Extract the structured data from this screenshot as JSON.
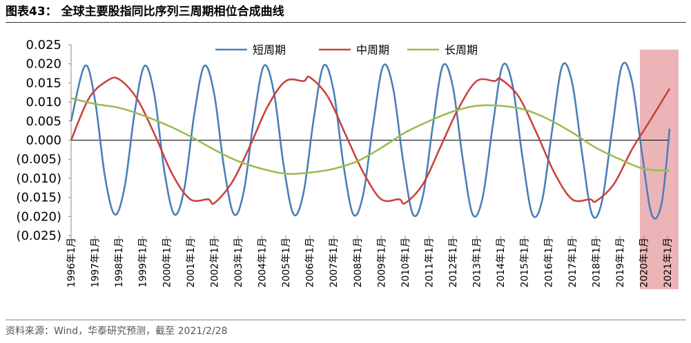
{
  "figure": {
    "title": "图表43：   全球主要股指同比序列三周期相位合成曲线",
    "source": "资料来源：Wind，华泰研究预测，截至 2021/2/28"
  },
  "chart_data": {
    "type": "line",
    "title": "",
    "xlabel": "",
    "ylabel": "",
    "ylim": [
      -0.025,
      0.025
    ],
    "yticks": [
      0.025,
      0.02,
      0.015,
      0.01,
      0.005,
      0.0,
      -0.005,
      -0.01,
      -0.015,
      -0.02,
      -0.025
    ],
    "ytick_labels": [
      "0.025",
      "0.020",
      "0.015",
      "0.010",
      "0.005",
      "0.000",
      "(0.005)",
      "(0.010)",
      "(0.015)",
      "(0.020)",
      "(0.025)"
    ],
    "xlim": [
      "1996-01",
      "2021-02"
    ],
    "xtick_labels": [
      "1996年1月",
      "1997年1月",
      "1998年1月",
      "1999年1月",
      "2000年1月",
      "2001年1月",
      "2002年1月",
      "2003年1月",
      "2004年1月",
      "2005年1月",
      "2006年1月",
      "2007年1月",
      "2008年1月",
      "2009年1月",
      "2010年1月",
      "2011年1月",
      "2012年1月",
      "2013年1月",
      "2014年1月",
      "2015年1月",
      "2016年1月",
      "2017年1月",
      "2018年1月",
      "2019年1月",
      "2020年1月",
      "2021年1月"
    ],
    "legend_position": "top-center",
    "grid": false,
    "highlight": {
      "from": "2020-12",
      "to": "2021-02",
      "color": "#e8a8ab"
    },
    "series": [
      {
        "name": "短周期",
        "color": "#4a7eb8",
        "x": [
          "1996-01",
          "1996-08",
          "1997-01",
          "1997-06",
          "1997-11",
          "1998-04",
          "1998-09",
          "1999-02",
          "1999-07",
          "1999-12",
          "2000-05",
          "2000-10",
          "2001-03",
          "2001-08",
          "2002-01",
          "2002-06",
          "2002-11",
          "2003-04",
          "2003-09",
          "2004-02",
          "2004-07",
          "2004-12",
          "2005-05",
          "2005-10",
          "2006-03",
          "2006-08",
          "2007-01",
          "2007-06",
          "2007-11",
          "2008-04",
          "2008-09",
          "2009-02",
          "2009-07",
          "2009-12",
          "2010-05",
          "2010-10",
          "2011-03",
          "2011-08",
          "2012-01",
          "2012-06",
          "2012-11",
          "2013-04",
          "2013-09",
          "2014-02",
          "2014-07",
          "2014-12",
          "2015-05",
          "2015-10",
          "2016-03",
          "2016-08",
          "2017-01",
          "2017-06",
          "2017-11",
          "2018-04",
          "2018-09",
          "2019-02",
          "2019-07",
          "2019-12",
          "2020-05",
          "2020-10",
          "2021-02"
        ],
        "values": [
          0.005,
          0.0195,
          0.0105,
          -0.0095,
          -0.0195,
          -0.012,
          0.0075,
          0.0195,
          0.0115,
          -0.0085,
          -0.0195,
          -0.0125,
          0.007,
          0.0195,
          0.012,
          -0.0075,
          -0.0195,
          -0.013,
          0.006,
          0.0195,
          0.0125,
          -0.007,
          -0.0195,
          -0.0135,
          0.0055,
          0.0195,
          0.013,
          -0.0065,
          -0.0195,
          -0.014,
          0.0045,
          0.0195,
          0.0135,
          -0.0055,
          -0.0195,
          -0.0145,
          0.004,
          0.0195,
          0.014,
          -0.005,
          -0.0195,
          -0.015,
          0.0035,
          0.0195,
          0.0145,
          -0.0045,
          -0.0195,
          -0.0155,
          0.003,
          0.0195,
          0.015,
          -0.0035,
          -0.0195,
          -0.016,
          0.0025,
          0.0195,
          0.0155,
          -0.003,
          -0.0195,
          -0.0165,
          0.003
        ]
      },
      {
        "name": "中周期",
        "color": "#c8423f",
        "x": [
          "1996-01",
          "1996-10",
          "1997-07",
          "1998-01",
          "1998-10",
          "1999-07",
          "2000-04",
          "2001-01",
          "2001-10",
          "2002-01",
          "2002-10",
          "2003-07",
          "2004-04",
          "2005-01",
          "2005-10",
          "2006-01",
          "2006-10",
          "2007-07",
          "2008-04",
          "2009-01",
          "2009-10",
          "2010-01",
          "2010-10",
          "2011-07",
          "2012-04",
          "2013-01",
          "2013-10",
          "2014-01",
          "2014-10",
          "2015-07",
          "2016-04",
          "2017-01",
          "2017-10",
          "2018-01",
          "2018-10",
          "2019-07",
          "2020-04",
          "2021-02"
        ],
        "values": [
          0.0,
          0.011,
          0.0155,
          0.016,
          0.011,
          0.0015,
          -0.009,
          -0.0155,
          -0.0155,
          -0.0165,
          -0.011,
          -0.0015,
          0.009,
          0.0155,
          0.0155,
          0.0165,
          0.0115,
          0.0015,
          -0.0085,
          -0.0155,
          -0.0155,
          -0.0165,
          -0.0115,
          -0.0015,
          0.0085,
          0.0155,
          0.0155,
          0.016,
          0.0115,
          0.002,
          -0.0085,
          -0.0155,
          -0.0155,
          -0.016,
          -0.0115,
          -0.0025,
          0.005,
          0.0135
        ]
      },
      {
        "name": "长周期",
        "color": "#9dbb52",
        "x": [
          "1996-01",
          "1997-01",
          "1998-01",
          "1999-01",
          "2000-01",
          "2001-01",
          "2002-01",
          "2003-01",
          "2004-01",
          "2005-01",
          "2006-01",
          "2007-01",
          "2008-01",
          "2009-01",
          "2010-01",
          "2011-01",
          "2012-01",
          "2013-01",
          "2014-01",
          "2015-01",
          "2016-01",
          "2017-01",
          "2018-01",
          "2019-01",
          "2020-01",
          "2021-02"
        ],
        "values": [
          0.011,
          0.0095,
          0.0085,
          0.0065,
          0.004,
          0.001,
          -0.0025,
          -0.0055,
          -0.0075,
          -0.0088,
          -0.0085,
          -0.0075,
          -0.0055,
          -0.002,
          0.002,
          0.005,
          0.0075,
          0.009,
          0.009,
          0.008,
          0.0055,
          0.002,
          -0.002,
          -0.005,
          -0.0075,
          -0.008
        ]
      }
    ]
  }
}
